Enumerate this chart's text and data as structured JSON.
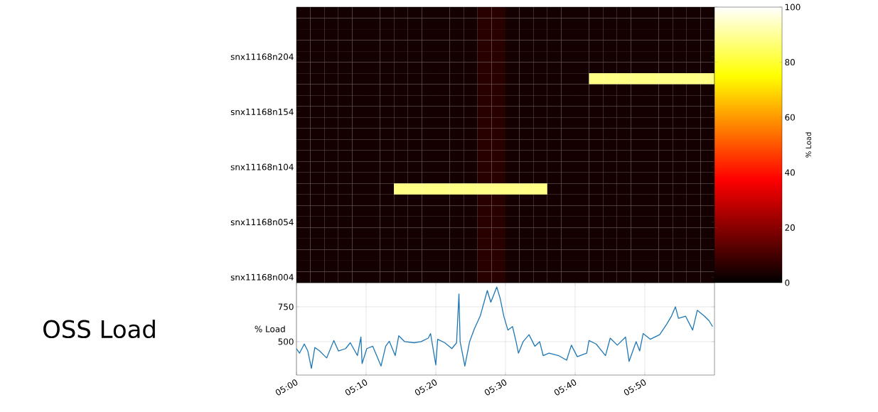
{
  "chart_data": [
    {
      "type": "heatmap",
      "categories": [
        null,
        null,
        null,
        null,
        null,
        null,
        null,
        null,
        null,
        null,
        null,
        null,
        null,
        null,
        null,
        null,
        null,
        null,
        null,
        null,
        null,
        null,
        null,
        null,
        null,
        null,
        null,
        null,
        null,
        null
      ],
      "y_categories": [
        null,
        null,
        null,
        null,
        "snx11168n204",
        null,
        null,
        null,
        null,
        "snx11168n154",
        null,
        null,
        null,
        null,
        "snx11168n104",
        null,
        null,
        null,
        null,
        "snx11168n054",
        null,
        null,
        null,
        null,
        "snx11168n004"
      ],
      "cells": [
        [
          3,
          3,
          3,
          3,
          3,
          3,
          3,
          3,
          3,
          3,
          3,
          3,
          3,
          6,
          6,
          3,
          3,
          3,
          3,
          3,
          3,
          3,
          3,
          3,
          3,
          3,
          3,
          3,
          3,
          3
        ],
        [
          3,
          3,
          3,
          3,
          3,
          3,
          3,
          3,
          3,
          3,
          3,
          3,
          3,
          6,
          6,
          3,
          3,
          3,
          3,
          3,
          3,
          3,
          3,
          3,
          3,
          3,
          3,
          3,
          3,
          3
        ],
        [
          3,
          3,
          3,
          3,
          3,
          3,
          3,
          3,
          3,
          3,
          3,
          3,
          3,
          6,
          6,
          3,
          3,
          3,
          3,
          3,
          3,
          3,
          3,
          3,
          3,
          3,
          3,
          3,
          3,
          3
        ],
        [
          3,
          3,
          3,
          3,
          3,
          3,
          3,
          3,
          3,
          3,
          3,
          3,
          3,
          6,
          6,
          3,
          3,
          3,
          3,
          3,
          3,
          3,
          3,
          3,
          3,
          3,
          3,
          3,
          3,
          3
        ],
        [
          3,
          3,
          3,
          3,
          3,
          3,
          3,
          3,
          3,
          3,
          3,
          3,
          3,
          6,
          6,
          3,
          3,
          3,
          3,
          3,
          3,
          3,
          3,
          3,
          3,
          3,
          3,
          3,
          3,
          3
        ],
        [
          3,
          3,
          3,
          3,
          3,
          3,
          3,
          3,
          3,
          3,
          3,
          3,
          3,
          6,
          6,
          3,
          3,
          3,
          3,
          3,
          3,
          3,
          3,
          3,
          3,
          3,
          3,
          3,
          3,
          3
        ],
        [
          3,
          3,
          3,
          3,
          3,
          3,
          3,
          3,
          3,
          3,
          3,
          3,
          3,
          6,
          6,
          3,
          3,
          3,
          3,
          3,
          3,
          88,
          88,
          88,
          88,
          88,
          88,
          88,
          88,
          88
        ],
        [
          3,
          3,
          3,
          3,
          3,
          3,
          3,
          3,
          3,
          3,
          3,
          3,
          3,
          6,
          6,
          3,
          3,
          3,
          3,
          3,
          3,
          3,
          3,
          3,
          3,
          3,
          3,
          3,
          3,
          3
        ],
        [
          3,
          3,
          3,
          3,
          3,
          3,
          3,
          3,
          3,
          3,
          3,
          3,
          3,
          6,
          6,
          3,
          3,
          3,
          3,
          3,
          3,
          3,
          3,
          3,
          3,
          3,
          3,
          3,
          3,
          3
        ],
        [
          3,
          3,
          3,
          3,
          3,
          3,
          3,
          3,
          3,
          3,
          3,
          3,
          3,
          6,
          6,
          3,
          3,
          3,
          3,
          3,
          3,
          3,
          3,
          3,
          3,
          3,
          3,
          3,
          3,
          3
        ],
        [
          3,
          3,
          3,
          3,
          3,
          3,
          3,
          3,
          3,
          3,
          3,
          3,
          3,
          6,
          6,
          3,
          3,
          3,
          3,
          3,
          3,
          3,
          3,
          3,
          3,
          3,
          3,
          3,
          3,
          3
        ],
        [
          3,
          3,
          3,
          3,
          3,
          3,
          3,
          3,
          3,
          3,
          3,
          3,
          3,
          6,
          6,
          3,
          3,
          3,
          3,
          3,
          3,
          3,
          3,
          3,
          3,
          3,
          3,
          3,
          3,
          3
        ],
        [
          3,
          3,
          3,
          3,
          3,
          3,
          3,
          3,
          3,
          3,
          3,
          3,
          3,
          6,
          6,
          3,
          3,
          3,
          3,
          3,
          3,
          3,
          3,
          3,
          3,
          3,
          3,
          3,
          3,
          3
        ],
        [
          3,
          3,
          3,
          3,
          3,
          3,
          3,
          3,
          3,
          3,
          3,
          3,
          3,
          6,
          6,
          3,
          3,
          3,
          3,
          3,
          3,
          3,
          3,
          3,
          3,
          3,
          3,
          3,
          3,
          3
        ],
        [
          3,
          3,
          3,
          3,
          3,
          3,
          3,
          3,
          3,
          3,
          3,
          3,
          3,
          6,
          6,
          3,
          3,
          3,
          3,
          3,
          3,
          3,
          3,
          3,
          3,
          3,
          3,
          3,
          3,
          3
        ],
        [
          3,
          3,
          3,
          3,
          3,
          3,
          3,
          3,
          3,
          3,
          3,
          3,
          3,
          6,
          6,
          3,
          3,
          3,
          3,
          3,
          3,
          3,
          3,
          3,
          3,
          3,
          3,
          3,
          3,
          3
        ],
        [
          3,
          3,
          3,
          3,
          3,
          3,
          3,
          88,
          88,
          88,
          88,
          88,
          88,
          88,
          88,
          88,
          88,
          88,
          3,
          3,
          3,
          3,
          3,
          3,
          3,
          3,
          3,
          3,
          3,
          3
        ],
        [
          3,
          3,
          3,
          3,
          3,
          3,
          3,
          3,
          3,
          3,
          3,
          3,
          3,
          6,
          6,
          3,
          3,
          3,
          3,
          3,
          3,
          3,
          3,
          3,
          3,
          3,
          3,
          3,
          3,
          3
        ],
        [
          3,
          3,
          3,
          3,
          3,
          3,
          3,
          3,
          3,
          3,
          3,
          3,
          3,
          6,
          6,
          3,
          3,
          3,
          3,
          3,
          3,
          3,
          3,
          3,
          3,
          3,
          3,
          3,
          3,
          3
        ],
        [
          3,
          3,
          3,
          3,
          3,
          3,
          3,
          3,
          3,
          3,
          3,
          3,
          3,
          6,
          6,
          3,
          3,
          3,
          3,
          3,
          3,
          3,
          3,
          3,
          3,
          3,
          3,
          3,
          3,
          3
        ],
        [
          3,
          3,
          3,
          3,
          3,
          3,
          3,
          3,
          3,
          3,
          3,
          3,
          3,
          6,
          6,
          3,
          3,
          3,
          3,
          3,
          3,
          3,
          3,
          3,
          3,
          3,
          3,
          3,
          3,
          3
        ],
        [
          3,
          3,
          3,
          3,
          3,
          3,
          3,
          3,
          3,
          3,
          3,
          3,
          3,
          6,
          6,
          3,
          3,
          3,
          3,
          3,
          3,
          3,
          3,
          3,
          3,
          3,
          3,
          3,
          3,
          3
        ],
        [
          3,
          3,
          3,
          3,
          3,
          3,
          3,
          3,
          3,
          3,
          3,
          3,
          3,
          6,
          6,
          3,
          3,
          3,
          3,
          3,
          3,
          3,
          3,
          3,
          3,
          3,
          3,
          3,
          3,
          3
        ],
        [
          3,
          3,
          3,
          3,
          3,
          3,
          3,
          3,
          3,
          3,
          3,
          3,
          3,
          6,
          6,
          3,
          3,
          3,
          3,
          3,
          3,
          3,
          3,
          3,
          3,
          3,
          3,
          3,
          3,
          3
        ],
        [
          3,
          3,
          3,
          3,
          3,
          3,
          3,
          3,
          3,
          3,
          3,
          3,
          3,
          6,
          6,
          3,
          3,
          3,
          3,
          3,
          3,
          3,
          3,
          3,
          3,
          3,
          3,
          3,
          3,
          3
        ]
      ],
      "clim": [
        0,
        100
      ],
      "cticks": [
        0,
        20,
        40,
        60,
        80,
        100
      ],
      "clabel": "% Load",
      "tick_labels": "y"
    },
    {
      "type": "line",
      "title": "OSS Load",
      "ylabel": "% Load",
      "color": "#1f77b4",
      "grid": true,
      "x": [
        5.0,
        5.0073,
        5.0187,
        5.0272,
        5.0357,
        5.044,
        5.0553,
        5.0723,
        5.0893,
        5.1005,
        5.1175,
        5.1288,
        5.1458,
        5.1542,
        5.157,
        5.1683,
        5.1825,
        5.2023,
        5.2135,
        5.222,
        5.2362,
        5.2447,
        5.2588,
        5.2813,
        5.2983,
        5.3153,
        5.3208,
        5.3333,
        5.3378,
        5.3548,
        5.3718,
        5.383,
        5.3887,
        5.3915,
        5.4028,
        5.4142,
        5.4255,
        5.4395,
        5.4565,
        5.465,
        5.4792,
        5.4875,
        5.496,
        5.5057,
        5.5168,
        5.5253,
        5.531,
        5.5422,
        5.5563,
        5.5703,
        5.5817,
        5.5902,
        5.6042,
        5.6267,
        5.6463,
        5.6577,
        5.6717,
        5.6943,
        5.6998,
        5.7168,
        5.7393,
        5.7505,
        5.7675,
        5.7872,
        5.7957,
        5.8125,
        5.821,
        5.8293,
        5.8463,
        5.8688,
        5.8857,
        5.897,
        5.9065,
        5.9138,
        5.9307,
        5.9477,
        5.9588,
        5.9758,
        5.987,
        5.9955
      ],
      "values": [
        450,
        417,
        483,
        433,
        308,
        458,
        433,
        383,
        508,
        433,
        450,
        492,
        400,
        533,
        342,
        450,
        467,
        325,
        467,
        503,
        400,
        542,
        500,
        492,
        500,
        525,
        558,
        333,
        517,
        492,
        450,
        492,
        842,
        500,
        325,
        500,
        592,
        683,
        867,
        783,
        892,
        808,
        683,
        583,
        608,
        500,
        417,
        500,
        550,
        467,
        500,
        400,
        417,
        400,
        367,
        475,
        392,
        417,
        508,
        483,
        400,
        525,
        475,
        533,
        358,
        500,
        433,
        558,
        517,
        550,
        625,
        683,
        750,
        667,
        683,
        583,
        725,
        683,
        650,
        608
      ],
      "xlim": [
        5,
        6
      ],
      "ylim": [
        260,
        923
      ],
      "yticks": [
        500,
        750
      ],
      "xticks": [
        {
          "value": 5,
          "label": "05:00"
        },
        {
          "value": 5.1666667,
          "label": "05:10"
        },
        {
          "value": 5.3333333,
          "label": "05:20"
        },
        {
          "value": 5.5,
          "label": "05:30"
        },
        {
          "value": 5.6666667,
          "label": "05:40"
        },
        {
          "value": 5.8333333,
          "label": "05:50"
        }
      ]
    }
  ]
}
